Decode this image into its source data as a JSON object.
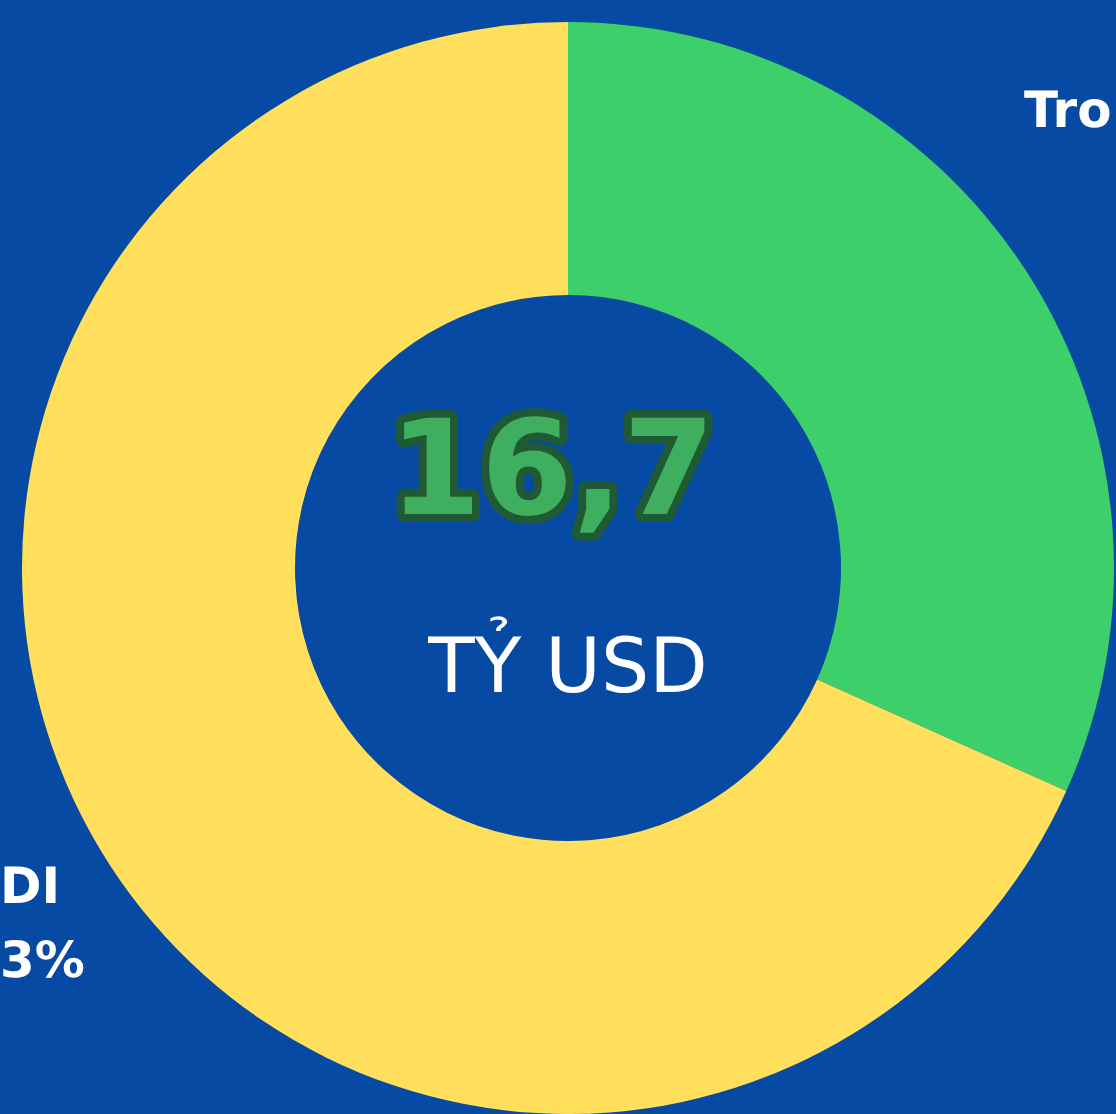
{
  "chart_data": {
    "type": "donut",
    "categories": [
      "Tro",
      "DI"
    ],
    "values": [
      31.7,
      68.3
    ],
    "colors": [
      "#3ccf6a",
      "#ffdf5c"
    ],
    "annotations": [
      "16,7",
      "TỶ USD",
      "3%"
    ],
    "legend": false
  }
}
